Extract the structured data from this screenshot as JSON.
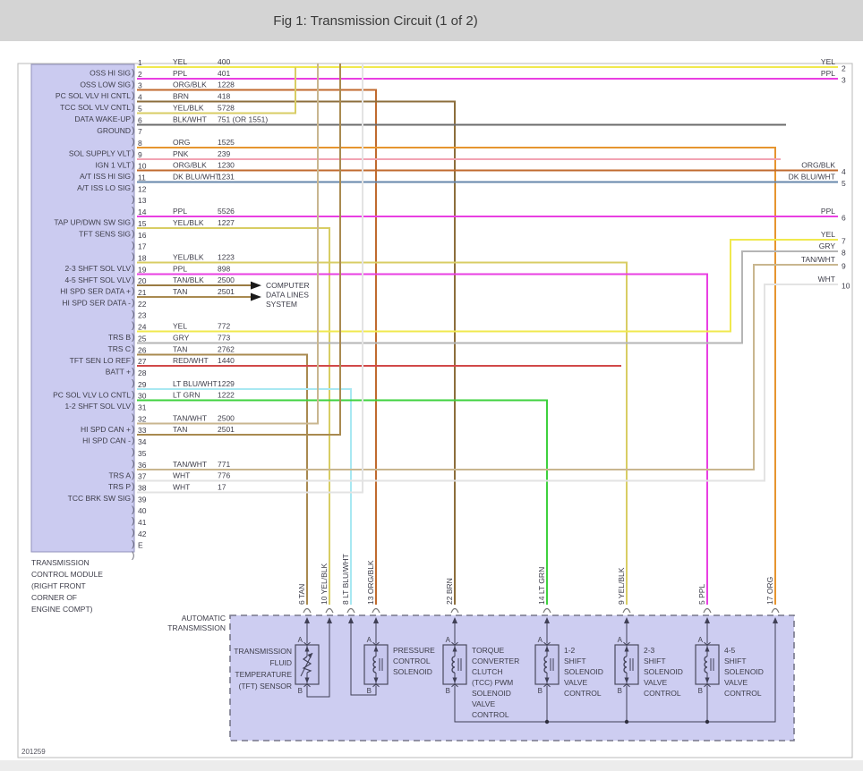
{
  "header": {
    "title": "Fig 1: Transmission Circuit (1 of 2)"
  },
  "footer": {
    "figure_id": "201259"
  },
  "wire_colors": {
    "YEL": "#f0e94e",
    "PPL": "#e93fe2",
    "ORG/BLK": "#c06a2e",
    "BRN": "#8c6e3c",
    "YEL/BLK": "#d8cd64",
    "BLK/WHT": "#6b6b6b",
    "ORG": "#e6952f",
    "PNK": "#f2a3b3",
    "DK BLU/WHT": "#6787ab",
    "TAN/BLK": "#9a7b42",
    "TAN": "#a98a50",
    "GRY": "#b5b5b5",
    "RED/WHT": "#d14949",
    "LT BLU/WHT": "#a8e8f2",
    "LT GRN": "#3ed13e",
    "TAN/WHT": "#c9b68f",
    "WHT": "#e3e3e3"
  },
  "tcm": {
    "name_lines": [
      "TRANSMISSION",
      "CONTROL MODULE",
      "(RIGHT FRONT",
      "CORNER OF",
      "ENGINE COMPT)"
    ],
    "pins": [
      {
        "pin": "1",
        "signal": "OSS HI SIG",
        "color": "YEL",
        "circuit": "400",
        "dest": "edge-2"
      },
      {
        "pin": "2",
        "signal": "OSS LOW SIG",
        "color": "PPL",
        "circuit": "401",
        "dest": "edge-3"
      },
      {
        "pin": "3",
        "signal": "PC SOL VLV HI CNTL",
        "color": "ORG/BLK",
        "circuit": "1228",
        "dest": "trans-13"
      },
      {
        "pin": "4",
        "signal": "TCC SOL VLV CNTL",
        "color": "BRN",
        "circuit": "418",
        "dest": "trans-22"
      },
      {
        "pin": "5",
        "signal": "DATA WAKE-UP",
        "color": "YEL/BLK",
        "circuit": "5728",
        "dest": "join-pin-1"
      },
      {
        "pin": "6",
        "signal": "GROUND",
        "color": "BLK/WHT",
        "circuit": "751 (OR 1551)",
        "dest": "open"
      },
      {
        "pin": "7"
      },
      {
        "pin": "8",
        "signal": "SOL SUPPLY VLT",
        "color": "ORG",
        "circuit": "1525",
        "dest": "trans-17"
      },
      {
        "pin": "9",
        "signal": "IGN 1 VLT",
        "color": "PNK",
        "circuit": "239",
        "dest": "open"
      },
      {
        "pin": "10",
        "signal": "A/T ISS HI SIG",
        "color": "ORG/BLK",
        "circuit": "1230",
        "dest": "edge-4"
      },
      {
        "pin": "11",
        "signal": "A/T ISS LO SIG",
        "color": "DK BLU/WHT",
        "circuit": "1231",
        "dest": "edge-5"
      },
      {
        "pin": "12"
      },
      {
        "pin": "13"
      },
      {
        "pin": "14",
        "signal": "TAP UP/DWN SW SIG",
        "color": "PPL",
        "circuit": "5526",
        "dest": "edge-6"
      },
      {
        "pin": "15",
        "signal": "TFT SENS SIG",
        "color": "YEL/BLK",
        "circuit": "1227",
        "dest": "trans-10"
      },
      {
        "pin": "16"
      },
      {
        "pin": "17"
      },
      {
        "pin": "18",
        "signal": "2-3 SHFT SOL VLV",
        "color": "YEL/BLK",
        "circuit": "1223",
        "dest": "trans-9"
      },
      {
        "pin": "19",
        "signal": "4-5 SHFT SOL VLV",
        "color": "PPL",
        "circuit": "898",
        "dest": "trans-5"
      },
      {
        "pin": "20",
        "signal": "HI SPD SER DATA +",
        "color": "TAN/BLK",
        "circuit": "2500",
        "dest": "computer-data-lines"
      },
      {
        "pin": "21",
        "signal": "HI SPD SER DATA -",
        "color": "TAN",
        "circuit": "2501",
        "dest": "computer-data-lines"
      },
      {
        "pin": "22"
      },
      {
        "pin": "23"
      },
      {
        "pin": "24",
        "signal": "TRS B",
        "color": "YEL",
        "circuit": "772",
        "dest": "edge-7"
      },
      {
        "pin": "25",
        "signal": "TRS C",
        "color": "GRY",
        "circuit": "773",
        "dest": "edge-8"
      },
      {
        "pin": "26",
        "signal": "TFT SEN LO REF",
        "color": "TAN",
        "circuit": "2762",
        "dest": "trans-6"
      },
      {
        "pin": "27",
        "signal": "BATT +",
        "color": "RED/WHT",
        "circuit": "1440",
        "dest": "open"
      },
      {
        "pin": "28"
      },
      {
        "pin": "29",
        "signal": "PC SOL VLV LO CNTL",
        "color": "LT BLU/WHT",
        "circuit": "1229",
        "dest": "trans-8"
      },
      {
        "pin": "30",
        "signal": "1-2 SHFT SOL VLV",
        "color": "LT GRN",
        "circuit": "1222",
        "dest": "trans-14"
      },
      {
        "pin": "31"
      },
      {
        "pin": "32",
        "signal": "HI SPD CAN +",
        "color": "TAN/WHT",
        "circuit": "2500",
        "dest": "top-edge"
      },
      {
        "pin": "33",
        "signal": "HI SPD CAN -",
        "color": "TAN",
        "circuit": "2501",
        "dest": "top-edge"
      },
      {
        "pin": "34"
      },
      {
        "pin": "35"
      },
      {
        "pin": "36",
        "signal": "TRS A",
        "color": "TAN/WHT",
        "circuit": "771",
        "dest": "edge-9"
      },
      {
        "pin": "37",
        "signal": "TRS P",
        "color": "WHT",
        "circuit": "776",
        "dest": "edge-10"
      },
      {
        "pin": "38",
        "signal": "TCC BRK SW SIG",
        "color": "WHT",
        "circuit": "17",
        "dest": "top-edge"
      },
      {
        "pin": "39"
      },
      {
        "pin": "40"
      },
      {
        "pin": "41"
      },
      {
        "pin": "42"
      },
      {
        "pin": "E"
      }
    ]
  },
  "computer_data_lines_label": [
    "COMPUTER",
    "DATA LINES",
    "SYSTEM"
  ],
  "transmission": {
    "label_lines": [
      "AUTOMATIC",
      "TRANSMISSION"
    ],
    "connector_pins": [
      {
        "pin": "6",
        "color": "TAN"
      },
      {
        "pin": "10",
        "color": "YEL/BLK"
      },
      {
        "pin": "8",
        "color": "LT BLU/WHT"
      },
      {
        "pin": "13",
        "color": "ORG/BLK"
      },
      {
        "pin": "22",
        "color": "BRN"
      },
      {
        "pin": "14",
        "color": "LT GRN"
      },
      {
        "pin": "9",
        "color": "YEL/BLK"
      },
      {
        "pin": "5",
        "color": "PPL"
      },
      {
        "pin": "17",
        "color": "ORG"
      }
    ],
    "components": [
      {
        "id": "tft-sensor",
        "type": "thermistor",
        "label_side": "left",
        "label_lines": [
          "TRANSMISSION",
          "FLUID",
          "TEMPERATURE",
          "(TFT) SENSOR"
        ],
        "terminals": [
          "A",
          "B"
        ]
      },
      {
        "id": "pressure-control-solenoid",
        "type": "solenoid",
        "label_side": "right",
        "label_lines": [
          "PRESSURE",
          "CONTROL",
          "SOLENOID"
        ],
        "terminals": [
          "A",
          "B"
        ]
      },
      {
        "id": "tcc-pwm-solenoid",
        "type": "solenoid",
        "label_side": "right",
        "label_lines": [
          "TORQUE",
          "CONVERTER",
          "CLUTCH",
          "(TCC) PWM",
          "SOLENOID",
          "VALVE",
          "CONTROL"
        ],
        "terminals": [
          "A",
          "B"
        ]
      },
      {
        "id": "shift-solenoid-1-2",
        "type": "solenoid",
        "label_side": "right",
        "label_lines": [
          "1-2",
          "SHIFT",
          "SOLENOID",
          "VALVE",
          "CONTROL"
        ],
        "terminals": [
          "A",
          "B"
        ]
      },
      {
        "id": "shift-solenoid-2-3",
        "type": "solenoid",
        "label_side": "right",
        "label_lines": [
          "2-3",
          "SHIFT",
          "SOLENOID",
          "VALVE",
          "CONTROL"
        ],
        "terminals": [
          "A",
          "B"
        ]
      },
      {
        "id": "shift-solenoid-4-5",
        "type": "solenoid",
        "label_side": "right",
        "label_lines": [
          "4-5",
          "SHIFT",
          "SOLENOID",
          "VALVE",
          "CONTROL"
        ],
        "terminals": [
          "A",
          "B"
        ]
      }
    ]
  }
}
